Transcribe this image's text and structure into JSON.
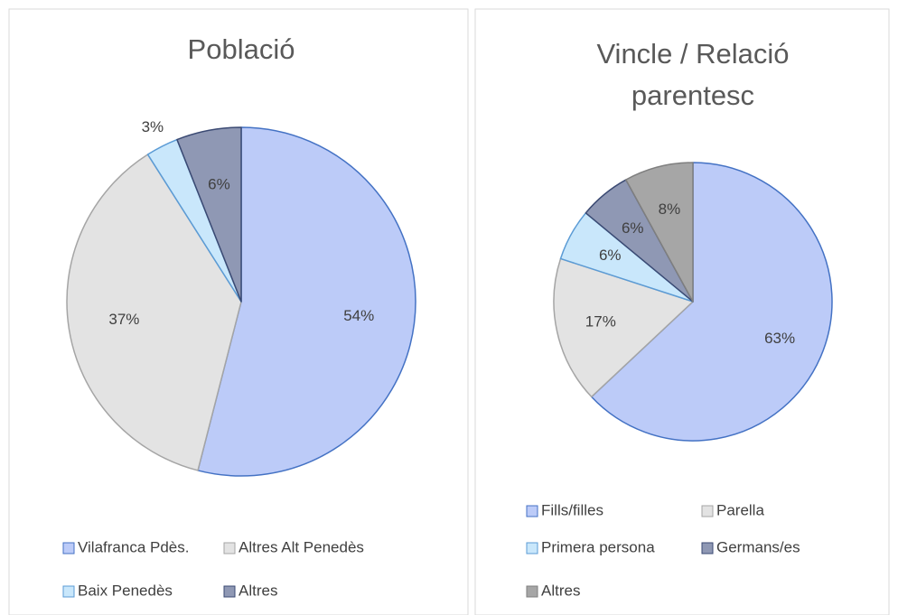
{
  "chart_data": [
    {
      "type": "pie",
      "title": "Població",
      "categories": [
        "Vilafranca Pdès.",
        "Altres Alt Penedès",
        "Baix Penedès",
        "Altres"
      ],
      "values": [
        54,
        37,
        3,
        6
      ],
      "value_labels": [
        "54%",
        "37%",
        "3%",
        "6%"
      ],
      "colors": [
        "#bccbf8",
        "#e3e3e3",
        "#c9e7fb",
        "#8f98b4"
      ],
      "edgecolors": [
        "#4472c4",
        "#a5a5a5",
        "#5b9bd5",
        "#3b4a73"
      ],
      "legend": "bottom"
    },
    {
      "type": "pie",
      "title": "Vincle / Relació parentesc",
      "categories": [
        "Fills/filles",
        "Parella",
        "Primera persona",
        "Germans/es",
        "Altres"
      ],
      "values": [
        63,
        17,
        6,
        6,
        8
      ],
      "value_labels": [
        "63%",
        "17%",
        "6%",
        "6%",
        "8%"
      ],
      "colors": [
        "#bccbf8",
        "#e3e3e3",
        "#c9e7fb",
        "#8f98b4",
        "#a6a6a6"
      ],
      "edgecolors": [
        "#4472c4",
        "#a5a5a5",
        "#5b9bd5",
        "#3b4a73",
        "#7f7f7f"
      ],
      "legend": "bottom"
    }
  ]
}
